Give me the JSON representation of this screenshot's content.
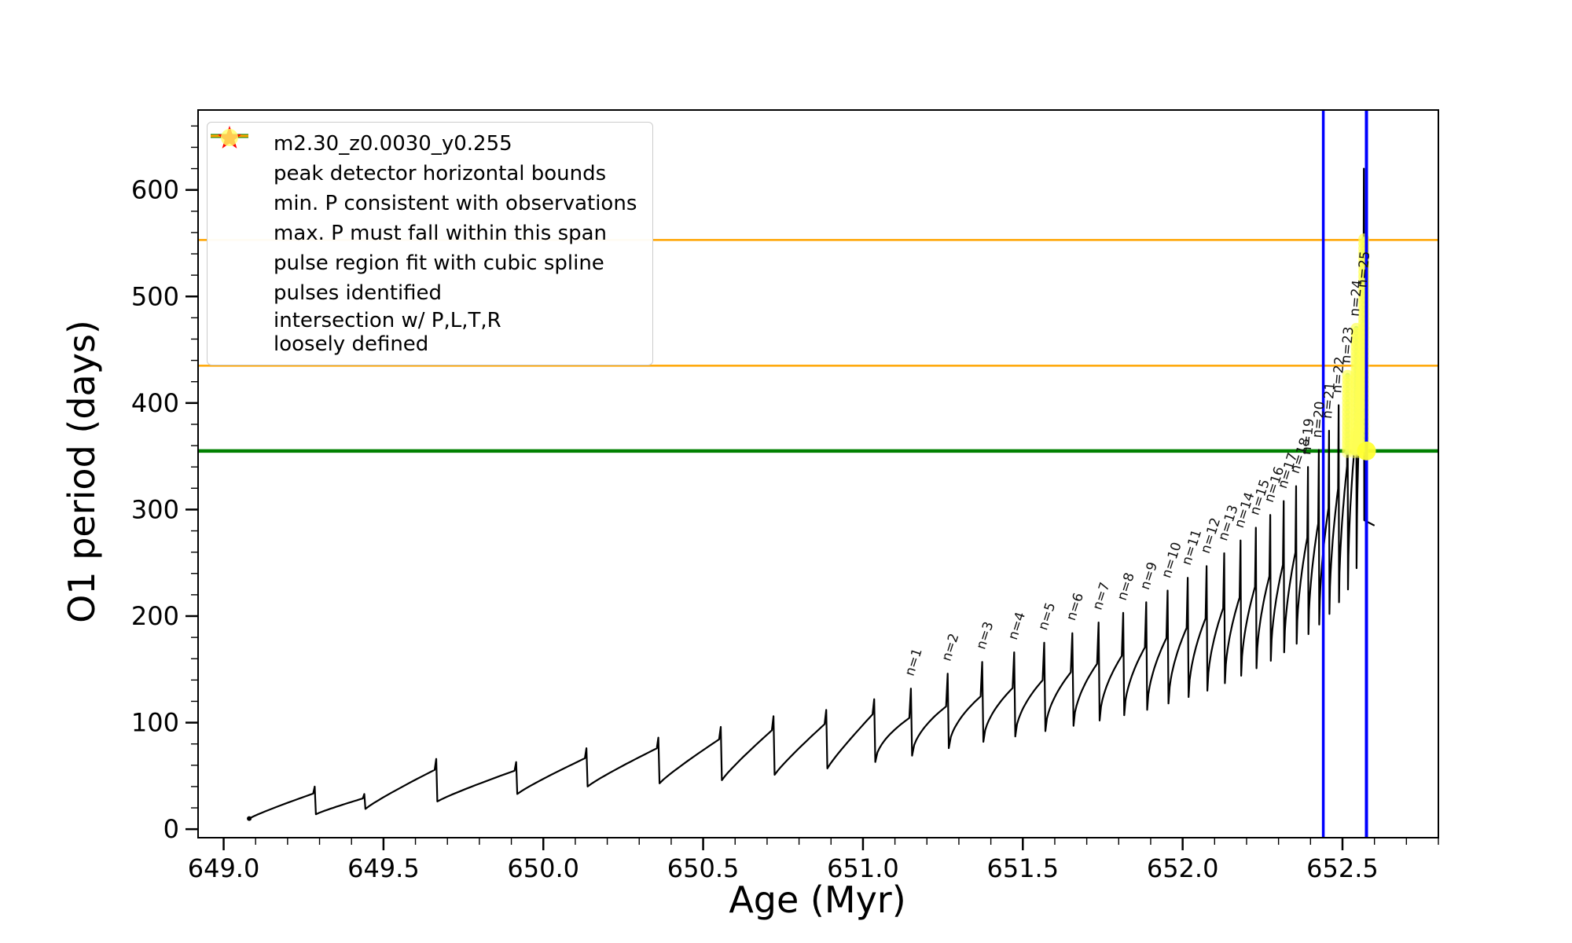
{
  "figure": {
    "background": "#ffffff"
  },
  "chart_data": {
    "type": "line",
    "title": "",
    "xlabel": "Age (Myr)",
    "ylabel": "O1 period (days)",
    "xlim": [
      648.92,
      652.8
    ],
    "ylim": [
      -8,
      675
    ],
    "x_major_ticks": [
      649.0,
      649.5,
      650.0,
      650.5,
      651.0,
      651.5,
      652.0,
      652.5
    ],
    "x_tick_labels": [
      "649.0",
      "649.5",
      "650.0",
      "650.5",
      "651.0",
      "651.5",
      "652.0",
      "652.5"
    ],
    "x_minor_step": 0.1,
    "y_major_ticks": [
      0,
      100,
      200,
      300,
      400,
      500,
      600
    ],
    "y_tick_labels": [
      "0",
      "100",
      "200",
      "300",
      "400",
      "500",
      "600"
    ],
    "y_minor_step": 20,
    "series_name": "m2.30_z0.0030_y0.255",
    "series_color": "#000000",
    "start_point": {
      "age": 649.08,
      "period": 10
    },
    "end_point": {
      "age": 652.6,
      "period": 285
    },
    "pre_pulses": [
      {
        "age": 649.285,
        "peak": 40,
        "dip": 14
      },
      {
        "age": 649.44,
        "peak": 33,
        "dip": 19
      },
      {
        "age": 649.665,
        "peak": 66,
        "dip": 26
      },
      {
        "age": 649.915,
        "peak": 63,
        "dip": 33
      },
      {
        "age": 650.135,
        "peak": 76,
        "dip": 40
      },
      {
        "age": 650.36,
        "peak": 86,
        "dip": 43
      },
      {
        "age": 650.555,
        "peak": 96,
        "dip": 46
      },
      {
        "age": 650.72,
        "peak": 106,
        "dip": 51
      },
      {
        "age": 650.885,
        "peak": 112,
        "dip": 57
      },
      {
        "age": 651.035,
        "peak": 122,
        "dip": 63
      }
    ],
    "numbered_pulses": [
      {
        "n": 1,
        "label": "n=1",
        "age": 651.15,
        "peak": 132,
        "dip": 69
      },
      {
        "n": 2,
        "label": "n=2",
        "age": 651.265,
        "peak": 146,
        "dip": 76
      },
      {
        "n": 3,
        "label": "n=3",
        "age": 651.373,
        "peak": 157,
        "dip": 82
      },
      {
        "n": 4,
        "label": "n=4",
        "age": 651.473,
        "peak": 166,
        "dip": 87
      },
      {
        "n": 5,
        "label": "n=5",
        "age": 651.567,
        "peak": 175,
        "dip": 92
      },
      {
        "n": 6,
        "label": "n=6",
        "age": 651.655,
        "peak": 184,
        "dip": 97
      },
      {
        "n": 7,
        "label": "n=7",
        "age": 651.737,
        "peak": 194,
        "dip": 102
      },
      {
        "n": 8,
        "label": "n=8",
        "age": 651.814,
        "peak": 203,
        "dip": 107
      },
      {
        "n": 9,
        "label": "n=9",
        "age": 651.886,
        "peak": 213,
        "dip": 112
      },
      {
        "n": 10,
        "label": "n=10",
        "age": 651.953,
        "peak": 224,
        "dip": 118
      },
      {
        "n": 11,
        "label": "n=11",
        "age": 652.016,
        "peak": 236,
        "dip": 124
      },
      {
        "n": 12,
        "label": "n=12",
        "age": 652.075,
        "peak": 247,
        "dip": 130
      },
      {
        "n": 13,
        "label": "n=13",
        "age": 652.13,
        "peak": 259,
        "dip": 137
      },
      {
        "n": 14,
        "label": "n=14",
        "age": 652.181,
        "peak": 271,
        "dip": 144
      },
      {
        "n": 15,
        "label": "n=15",
        "age": 652.229,
        "peak": 283,
        "dip": 151
      },
      {
        "n": 16,
        "label": "n=16",
        "age": 652.274,
        "peak": 295,
        "dip": 158
      },
      {
        "n": 17,
        "label": "n=17",
        "age": 652.316,
        "peak": 308,
        "dip": 166
      },
      {
        "n": 18,
        "label": "n=18",
        "age": 652.355,
        "peak": 322,
        "dip": 174
      },
      {
        "n": 19,
        "label": "n=19",
        "age": 652.392,
        "peak": 340,
        "dip": 183
      },
      {
        "n": 20,
        "label": "n=20",
        "age": 652.426,
        "peak": 356,
        "dip": 192
      },
      {
        "n": 21,
        "label": "n=21",
        "age": 652.458,
        "peak": 374,
        "dip": 202
      },
      {
        "n": 22,
        "label": "n=22",
        "age": 652.488,
        "peak": 398,
        "dip": 213
      },
      {
        "n": 23,
        "label": "n=23",
        "age": 652.516,
        "peak": 426,
        "dip": 225
      },
      {
        "n": 24,
        "label": "n=24",
        "age": 652.543,
        "peak": 470,
        "dip": 245
      },
      {
        "n": 25,
        "label": "n=25",
        "age": 652.567,
        "peak": 620,
        "dip": 290
      }
    ],
    "horizontal_lines": [
      {
        "name": "max-P-span-upper",
        "value": 553,
        "color": "#ffa500",
        "width": 2.5
      },
      {
        "name": "max-P-span-lower",
        "value": 435,
        "color": "#ffa500",
        "width": 2.5
      },
      {
        "name": "min-P-observed",
        "value": 355,
        "color": "#008000",
        "width": 4.5
      }
    ],
    "vertical_lines": [
      {
        "name": "peak-detector-left",
        "value": 652.44,
        "color": "#0000ff",
        "width": 3.5
      },
      {
        "name": "peak-detector-right",
        "value": 652.575,
        "color": "#0000ff",
        "width": 4
      }
    ],
    "intersection_point": {
      "age": 652.575,
      "period": 355,
      "color": "#ffff33",
      "radius": 12
    },
    "highlight_region": {
      "age_min": 652.49,
      "age_max": 652.59,
      "period_min": 352,
      "period_max": 558,
      "spline_dot_color": "#8fe08f",
      "band_color": "#ffff55"
    }
  },
  "legend": {
    "items": [
      {
        "marker": "line-dot",
        "color": "#000000",
        "label": "m2.30_z0.0030_y0.255"
      },
      {
        "marker": "thick-line",
        "color": "#0000ff",
        "label": "peak detector horizontal bounds"
      },
      {
        "marker": "thick-line",
        "color": "#008000",
        "label": "min. P consistent with observations"
      },
      {
        "marker": "line",
        "color": "#ffa500",
        "label": "max. P must fall within this span"
      },
      {
        "marker": "small-dot",
        "color": "#90ee90",
        "label": "pulse region fit with cubic spline"
      },
      {
        "marker": "star",
        "color": "#ff0000",
        "label": "pulses identified"
      },
      {
        "marker": "big-dot",
        "color": "#ffff66",
        "label": "intersection w/ P,L,T,R\nloosely defined"
      }
    ]
  }
}
